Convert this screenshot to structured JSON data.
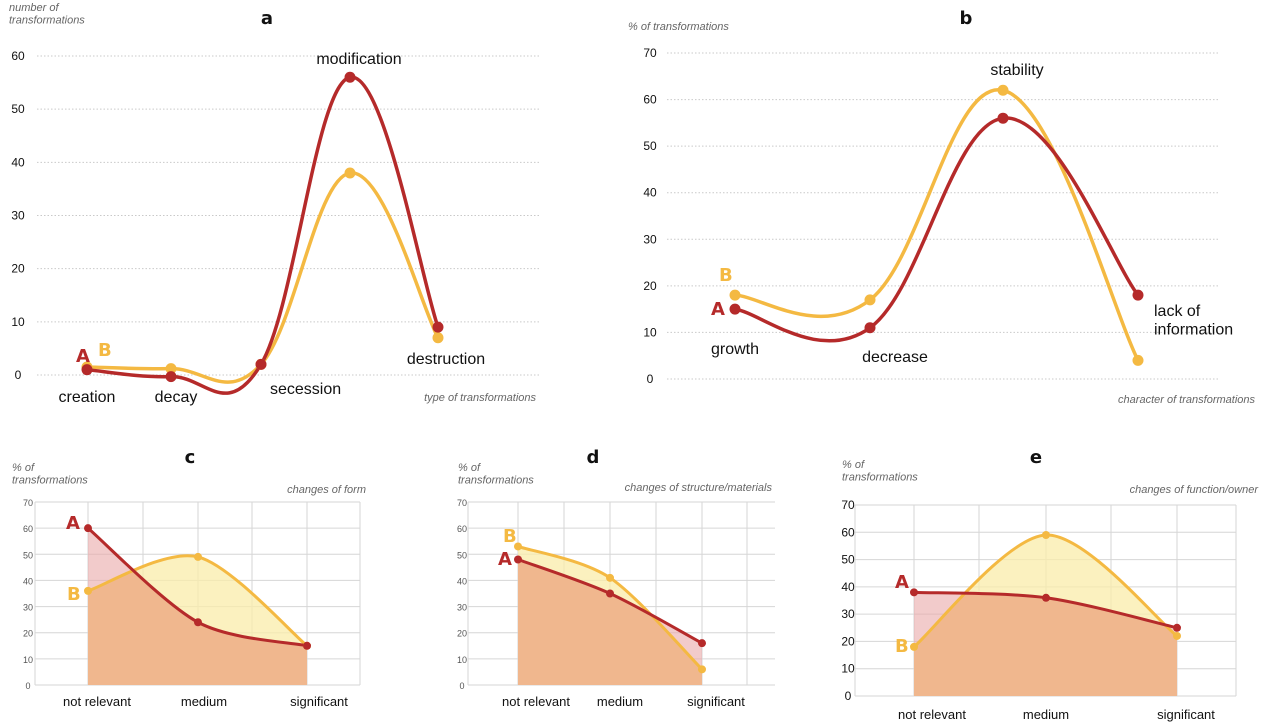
{
  "colors": {
    "A": "#b52a2a",
    "B": "#f4b942",
    "A_fill": "#e9a8a8",
    "B_fill": "#f9ecaa",
    "overlap_fill": "#f0b78e"
  },
  "chart_data": [
    {
      "id": "a",
      "type": "line",
      "title": "a",
      "ylabel": "number of\ntransformations",
      "xlabel": "type of transformations",
      "ylim": [
        0,
        60
      ],
      "yticks": [
        0,
        10,
        20,
        30,
        40,
        50,
        60
      ],
      "grid": true,
      "categories": [
        "creation",
        "decay",
        "secession",
        "modification",
        "destruction"
      ],
      "series": [
        {
          "name": "A",
          "values": [
            1,
            -0.3,
            2,
            56,
            9
          ]
        },
        {
          "name": "B",
          "values": [
            1.5,
            1.2,
            2,
            38,
            7
          ]
        }
      ]
    },
    {
      "id": "b",
      "type": "line",
      "title": "b",
      "ylabel": "% of transformations",
      "xlabel": "character of transformations",
      "ylim": [
        0,
        70
      ],
      "yticks": [
        0,
        10,
        20,
        30,
        40,
        50,
        60,
        70
      ],
      "grid": true,
      "categories": [
        "growth",
        "decrease",
        "stability",
        "lack of\ninformation"
      ],
      "series": [
        {
          "name": "A",
          "values": [
            15,
            11,
            56,
            18
          ]
        },
        {
          "name": "B",
          "values": [
            18,
            17,
            62,
            4
          ]
        }
      ]
    },
    {
      "id": "c",
      "type": "area",
      "title": "c",
      "ylabel": "% of\ntransformations",
      "xlabel": "changes of form",
      "ylim": [
        0,
        70
      ],
      "yticks": [
        0,
        10,
        20,
        30,
        40,
        50,
        60,
        70
      ],
      "grid": true,
      "categories": [
        "not relevant",
        "medium",
        "significant"
      ],
      "series": [
        {
          "name": "A",
          "values": [
            60,
            24,
            15
          ]
        },
        {
          "name": "B",
          "values": [
            36,
            49,
            15
          ]
        }
      ]
    },
    {
      "id": "d",
      "type": "area",
      "title": "d",
      "ylabel": "% of\ntransformations",
      "xlabel": "changes of structure/materials",
      "ylim": [
        0,
        70
      ],
      "yticks": [
        0,
        10,
        20,
        30,
        40,
        50,
        60,
        70
      ],
      "grid": true,
      "categories": [
        "not relevant",
        "medium",
        "significant"
      ],
      "series": [
        {
          "name": "A",
          "values": [
            48,
            35,
            16
          ]
        },
        {
          "name": "B",
          "values": [
            53,
            41,
            6
          ]
        }
      ]
    },
    {
      "id": "e",
      "type": "area",
      "title": "e",
      "ylabel": "% of\ntransformations",
      "xlabel": "changes of function/owner",
      "ylim": [
        0,
        70
      ],
      "yticks": [
        0,
        10,
        20,
        30,
        40,
        50,
        60,
        70
      ],
      "grid": true,
      "categories": [
        "not relevant",
        "medium",
        "significant"
      ],
      "series": [
        {
          "name": "A",
          "values": [
            38,
            36,
            25
          ]
        },
        {
          "name": "B",
          "values": [
            18,
            59,
            22
          ]
        }
      ]
    }
  ]
}
